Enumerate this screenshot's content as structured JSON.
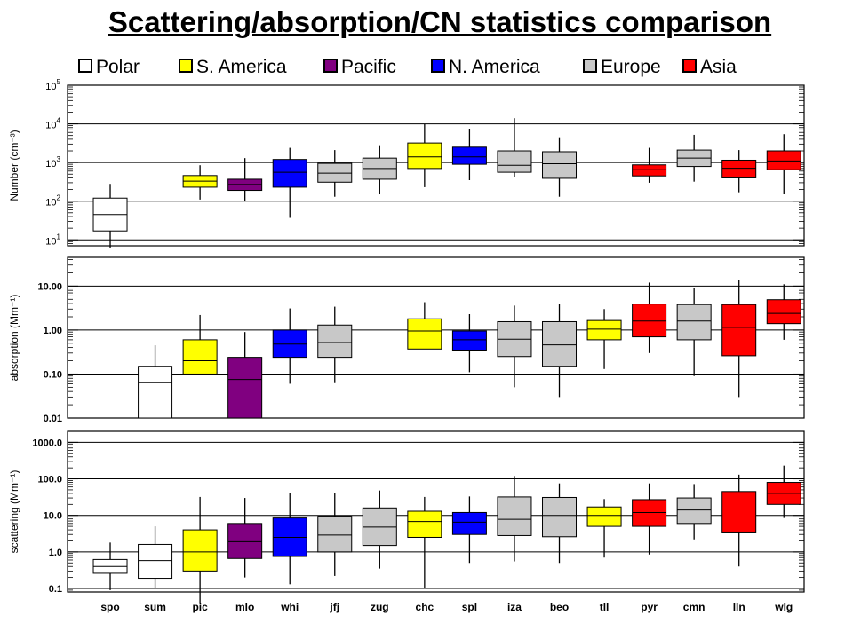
{
  "title": "Scattering/absorption/CN statistics comparison",
  "legend": [
    {
      "label": "Polar",
      "color": "#ffffff"
    },
    {
      "label": "S. America",
      "color": "#ffff00"
    },
    {
      "label": "Pacific",
      "color": "#800080"
    },
    {
      "label": "N. America",
      "color": "#0000ff"
    },
    {
      "label": "Europe",
      "color": "#c8c8c8"
    },
    {
      "label": "Asia",
      "color": "#ff0000"
    }
  ],
  "chart_data": {
    "type": "box",
    "stations": [
      "spo",
      "sum",
      "pic",
      "mlo",
      "whi",
      "jfj",
      "zug",
      "chc",
      "spl",
      "iza",
      "beo",
      "tll",
      "pyr",
      "cmn",
      "lln",
      "wlg"
    ],
    "station_colors": [
      "#ffffff",
      "#ffffff",
      "#ffff00",
      "#800080",
      "#0000ff",
      "#c8c8c8",
      "#c8c8c8",
      "#ffff00",
      "#0000ff",
      "#c8c8c8",
      "#c8c8c8",
      "#ffff00",
      "#ff0000",
      "#c8c8c8",
      "#ff0000",
      "#ff0000"
    ],
    "panels": [
      {
        "ylabel": "Number (cm⁻³)",
        "scale": "log",
        "ylim": [
          7,
          100000
        ],
        "ticks": [
          {
            "value": 10,
            "base": "10",
            "exp": "1"
          },
          {
            "value": 100,
            "base": "10",
            "exp": "2"
          },
          {
            "value": 1000,
            "base": "10",
            "exp": "3"
          },
          {
            "value": 10000,
            "base": "10",
            "exp": "4"
          },
          {
            "value": 100000,
            "base": "10",
            "exp": "5"
          }
        ],
        "boxes": [
          [
            6,
            17,
            45,
            120,
            280
          ],
          null,
          [
            110,
            230,
            330,
            460,
            850
          ],
          [
            100,
            190,
            270,
            370,
            1300
          ],
          [
            37,
            230,
            560,
            1200,
            2400
          ],
          [
            130,
            310,
            530,
            950,
            2100
          ],
          [
            150,
            370,
            700,
            1300,
            2800
          ],
          [
            230,
            700,
            1400,
            3200,
            10000
          ],
          [
            350,
            900,
            1400,
            2500,
            7500
          ],
          [
            420,
            560,
            850,
            2000,
            14000
          ],
          [
            130,
            390,
            930,
            1900,
            4500
          ],
          null,
          [
            300,
            450,
            650,
            870,
            2400
          ],
          [
            320,
            790,
            1300,
            2100,
            5200
          ],
          [
            170,
            400,
            710,
            1150,
            2100
          ],
          [
            150,
            650,
            1100,
            2000,
            5400
          ]
        ]
      },
      {
        "ylabel": "absorption (Mm⁻¹)",
        "scale": "log",
        "ylim": [
          0.01,
          45
        ],
        "ticks": [
          {
            "value": 0.01,
            "label": "0.01"
          },
          {
            "value": 0.1,
            "label": "0.10"
          },
          {
            "value": 1,
            "label": "1.00"
          },
          {
            "value": 10,
            "label": "10.00"
          }
        ],
        "boxes": [
          null,
          [
            0.01,
            0.01,
            0.065,
            0.15,
            0.45
          ],
          [
            0.1,
            0.1,
            0.2,
            0.6,
            2.2
          ],
          [
            0.01,
            0.01,
            0.075,
            0.24,
            0.9
          ],
          [
            0.06,
            0.24,
            0.48,
            1.0,
            3.1
          ],
          [
            0.065,
            0.24,
            0.52,
            1.3,
            3.4
          ],
          null,
          [
            0.37,
            0.37,
            0.95,
            1.8,
            4.3
          ],
          [
            0.11,
            0.35,
            0.6,
            0.95,
            2.3
          ],
          [
            0.05,
            0.25,
            0.62,
            1.55,
            3.6
          ],
          [
            0.03,
            0.15,
            0.46,
            1.55,
            3.9
          ],
          [
            0.13,
            0.6,
            1.05,
            1.65,
            3.0
          ],
          [
            0.3,
            0.7,
            1.6,
            3.9,
            12
          ],
          [
            0.09,
            0.6,
            1.6,
            3.8,
            9
          ],
          [
            0.03,
            0.26,
            1.15,
            3.8,
            14
          ],
          [
            0.6,
            1.4,
            2.4,
            4.9,
            11
          ]
        ]
      },
      {
        "ylabel": "scattering (Mm⁻¹)",
        "scale": "log",
        "ylim": [
          0.08,
          2000
        ],
        "ticks": [
          {
            "value": 0.1,
            "label": "0.1"
          },
          {
            "value": 1,
            "label": "1.0"
          },
          {
            "value": 10,
            "label": "10.0"
          },
          {
            "value": 100,
            "label": "100.0"
          },
          {
            "value": 1000,
            "label": "1000.0"
          }
        ],
        "boxes": [
          [
            0.09,
            0.26,
            0.4,
            0.62,
            1.8
          ],
          [
            0.1,
            0.19,
            0.58,
            1.6,
            5
          ],
          [
            0.04,
            0.3,
            1.0,
            4,
            32
          ],
          [
            0.2,
            0.66,
            1.9,
            6,
            30
          ],
          [
            0.13,
            0.75,
            2.5,
            8.5,
            40
          ],
          [
            0.22,
            1.0,
            2.9,
            9.5,
            40
          ],
          [
            0.35,
            1.5,
            4.8,
            16,
            48
          ],
          [
            0.1,
            2.5,
            6.8,
            13,
            32
          ],
          [
            0.5,
            3,
            6.5,
            12,
            33
          ],
          [
            0.55,
            2.8,
            7.8,
            32,
            120
          ],
          [
            0.5,
            2.6,
            10,
            31,
            75
          ],
          [
            0.7,
            5,
            10,
            17,
            28
          ],
          [
            0.85,
            5,
            12,
            27,
            75
          ],
          [
            2.2,
            6,
            14,
            30,
            72
          ],
          [
            0.4,
            3.5,
            15,
            45,
            130
          ],
          [
            8.5,
            20,
            40,
            80,
            230
          ]
        ]
      }
    ]
  }
}
